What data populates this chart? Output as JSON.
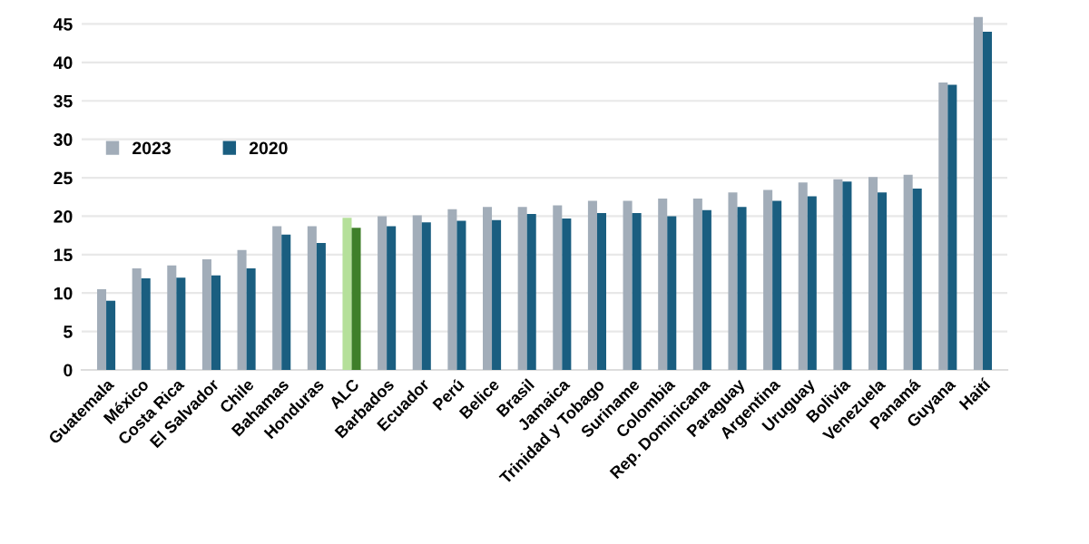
{
  "chart_data": {
    "type": "bar",
    "categories": [
      "Guatemala",
      "México",
      "Costa Rica",
      "El Salvador",
      "Chile",
      "Bahamas",
      "Honduras",
      "ALC",
      "Barbados",
      "Ecuador",
      "Perú",
      "Belice",
      "Brasil",
      "Jamaica",
      "Trinidad y Tobago",
      "Suriname",
      "Colombia",
      "Rep. Dominicana",
      "Paraguay",
      "Argentina",
      "Uruguay",
      "Bolivia",
      "Venezuela",
      "Panamá",
      "Guyana",
      "Haití"
    ],
    "series": [
      {
        "name": "2023",
        "color": "#a2adb9",
        "colors": [
          "#a2adb9",
          "#a2adb9",
          "#a2adb9",
          "#a2adb9",
          "#a2adb9",
          "#a2adb9",
          "#a2adb9",
          "#b5e09a",
          "#a2adb9",
          "#a2adb9",
          "#a2adb9",
          "#a2adb9",
          "#a2adb9",
          "#a2adb9",
          "#a2adb9",
          "#a2adb9",
          "#a2adb9",
          "#a2adb9",
          "#a2adb9",
          "#a2adb9",
          "#a2adb9",
          "#a2adb9",
          "#a2adb9",
          "#a2adb9",
          "#a2adb9",
          "#a2adb9"
        ],
        "values": [
          10.5,
          13.2,
          13.6,
          14.4,
          15.6,
          18.7,
          18.7,
          19.8,
          20.0,
          20.1,
          20.9,
          21.2,
          21.2,
          21.4,
          22.0,
          22.0,
          22.3,
          22.3,
          23.1,
          23.4,
          24.4,
          24.8,
          25.1,
          25.4,
          37.4,
          45.9
        ]
      },
      {
        "name": "2020",
        "color": "#1a5e80",
        "colors": [
          "#1a5e80",
          "#1a5e80",
          "#1a5e80",
          "#1a5e80",
          "#1a5e80",
          "#1a5e80",
          "#1a5e80",
          "#3f7f2a",
          "#1a5e80",
          "#1a5e80",
          "#1a5e80",
          "#1a5e80",
          "#1a5e80",
          "#1a5e80",
          "#1a5e80",
          "#1a5e80",
          "#1a5e80",
          "#1a5e80",
          "#1a5e80",
          "#1a5e80",
          "#1a5e80",
          "#1a5e80",
          "#1a5e80",
          "#1a5e80",
          "#1a5e80",
          "#1a5e80"
        ],
        "values": [
          9.0,
          11.9,
          12.0,
          12.3,
          13.2,
          17.6,
          16.5,
          18.5,
          18.7,
          19.2,
          19.4,
          19.5,
          20.3,
          19.7,
          20.4,
          20.4,
          20.0,
          20.8,
          21.2,
          22.0,
          22.6,
          24.5,
          23.1,
          23.6,
          37.1,
          44.0
        ]
      }
    ],
    "ylim": [
      0,
      46
    ],
    "yticks": [
      0,
      5,
      10,
      15,
      20,
      25,
      30,
      35,
      40,
      45
    ],
    "grid": "y",
    "legend": "top left"
  }
}
